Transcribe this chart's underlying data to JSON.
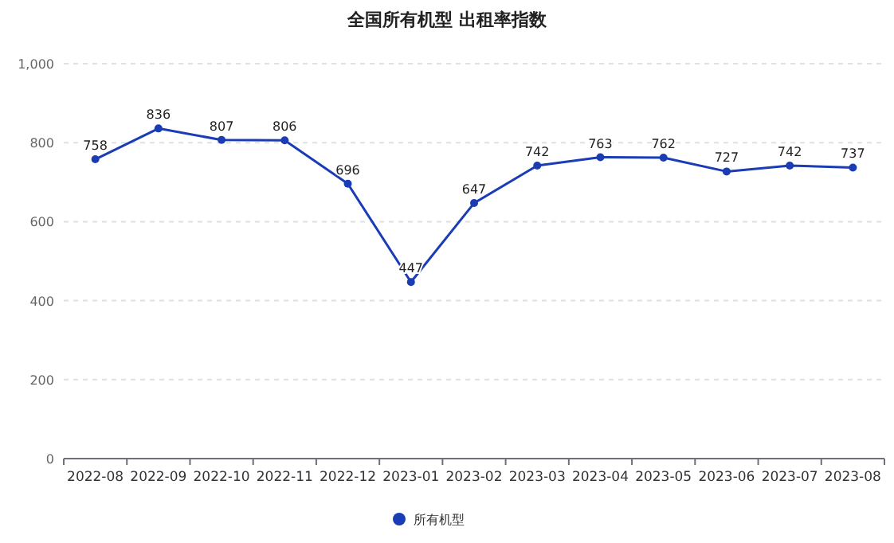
{
  "chart_data": {
    "type": "line",
    "title": "全国所有机型 出租率指数",
    "categories": [
      "2022-08",
      "2022-09",
      "2022-10",
      "2022-11",
      "2022-12",
      "2023-01",
      "2023-02",
      "2023-03",
      "2023-04",
      "2023-05",
      "2023-06",
      "2023-07",
      "2023-08"
    ],
    "series": [
      {
        "name": "所有机型",
        "color": "#1a3cb4",
        "values": [
          758,
          836,
          807,
          806,
          696,
          447,
          647,
          742,
          763,
          762,
          727,
          742,
          737
        ]
      }
    ],
    "ylim": [
      0,
      1000
    ],
    "yticks": [
      0,
      200,
      400,
      600,
      800,
      {
        "value": 1000,
        "label": "1,000"
      }
    ],
    "grid": "y",
    "legend": "bottom",
    "marker": "circle",
    "line_style": "solid",
    "data_labels": true
  }
}
